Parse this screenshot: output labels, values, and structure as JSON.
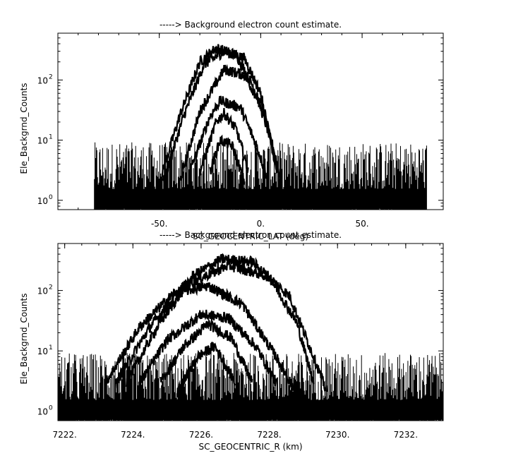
{
  "chart_data": [
    {
      "type": "line",
      "title": "-----> Background electron count estimate.",
      "xlabel": "SC_GEOCENTRIC_LAT (deg)",
      "ylabel": "Ele_Backgrnd_Counts",
      "xlim": [
        -100,
        90
      ],
      "ylim": [
        0.7,
        600
      ],
      "yscale": "log",
      "xticks": [
        -50,
        0,
        50
      ],
      "xtick_labels": [
        "-50.",
        "0.",
        "50."
      ],
      "yticks": [
        1,
        10,
        100
      ],
      "ytick_labels": [
        "10",
        "10",
        "10"
      ],
      "ytick_exponents": [
        "0",
        "1",
        "2"
      ],
      "grid": false,
      "noise_band": {
        "x_range": [
          -82,
          82
        ],
        "low": 1,
        "high": 2.2
      },
      "series": [
        {
          "x": [
            -50,
            -40,
            -30,
            -22,
            -12,
            -3,
            6,
            10
          ],
          "y": [
            2,
            25,
            200,
            340,
            260,
            70,
            8,
            2
          ]
        },
        {
          "x": [
            -48,
            -38,
            -28,
            -18,
            -8,
            0,
            8
          ],
          "y": [
            2,
            25,
            180,
            300,
            230,
            60,
            3
          ]
        },
        {
          "x": [
            -40,
            -30,
            -18,
            -8,
            2,
            8
          ],
          "y": [
            2,
            30,
            150,
            120,
            30,
            3
          ]
        },
        {
          "x": [
            -35,
            -25,
            -20,
            -10,
            -2,
            4
          ],
          "y": [
            3,
            25,
            45,
            35,
            8,
            2
          ]
        },
        {
          "x": [
            -30,
            -22,
            -18,
            -12,
            -6
          ],
          "y": [
            3,
            20,
            28,
            15,
            3
          ]
        },
        {
          "x": [
            -25,
            -20,
            -14,
            -8
          ],
          "y": [
            3,
            10,
            8,
            2
          ]
        }
      ]
    },
    {
      "type": "line",
      "title": "-----> Background electron count estimate.",
      "xlabel": "SC_GEOCENTRIC_R (km)",
      "ylabel": "Ele_Backgrnd_Counts",
      "xlim": [
        7221.8,
        7233.1
      ],
      "ylim": [
        0.7,
        600
      ],
      "yscale": "log",
      "xticks": [
        7222,
        7224,
        7226,
        7228,
        7230,
        7232
      ],
      "xtick_labels": [
        "7222.",
        "7224.",
        "7226.",
        "7228.",
        "7230.",
        "7232."
      ],
      "yticks": [
        1,
        10,
        100
      ],
      "ytick_labels": [
        "10",
        "10",
        "10"
      ],
      "ytick_exponents": [
        "0",
        "1",
        "2"
      ],
      "grid": false,
      "noise_band": {
        "x_range": [
          7221.8,
          7233.1
        ],
        "low": 1,
        "high": 2.2
      },
      "series": [
        {
          "x": [
            7223.8,
            7224.8,
            7225.8,
            7226.6,
            7227.5,
            7228.6,
            7229.3,
            7229.7
          ],
          "y": [
            3,
            30,
            180,
            330,
            300,
            80,
            8,
            2
          ]
        },
        {
          "x": [
            7223.5,
            7224.5,
            7225.5,
            7226.8,
            7228.0,
            7228.8,
            7229.3
          ],
          "y": [
            3,
            25,
            120,
            260,
            170,
            30,
            3
          ]
        },
        {
          "x": [
            7223.2,
            7224.2,
            7225.2,
            7226.2,
            7227.2,
            7228.2,
            7228.8
          ],
          "y": [
            3,
            25,
            90,
            120,
            60,
            8,
            2
          ]
        },
        {
          "x": [
            7224.2,
            7225.0,
            7226.0,
            7226.8,
            7227.6,
            7228.2
          ],
          "y": [
            3,
            15,
            40,
            35,
            12,
            3
          ]
        },
        {
          "x": [
            7224.8,
            7225.5,
            7226.2,
            7226.9,
            7227.5
          ],
          "y": [
            3,
            12,
            28,
            16,
            3
          ]
        },
        {
          "x": [
            7225.3,
            7225.9,
            7226.4,
            7227.0
          ],
          "y": [
            2,
            8,
            12,
            3
          ]
        }
      ]
    }
  ]
}
